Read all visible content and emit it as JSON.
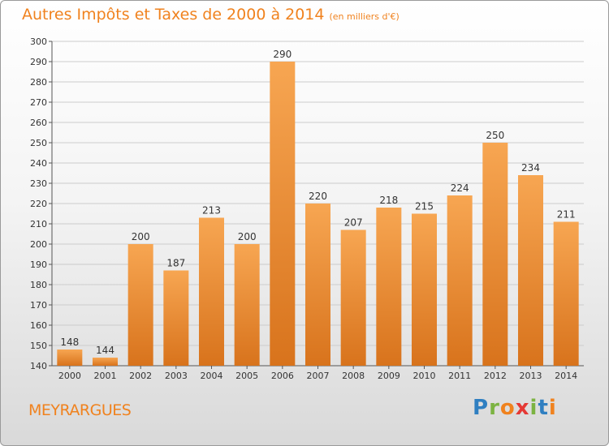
{
  "header": {
    "title": "Autres Impôts et Taxes de 2000 à 2014",
    "subtitle": "(en milliers d'€)"
  },
  "footer": {
    "commune": "MEYRARGUES",
    "logo_text": "Proxiti",
    "logo_colors": [
      "#2f7fc1",
      "#7cb342",
      "#f0821e",
      "#e53935",
      "#7cb342",
      "#2f7fc1",
      "#f0821e"
    ]
  },
  "colors": {
    "bar_light": "#f7a652",
    "bar_dark": "#d8731c",
    "accent": "#f0821e",
    "grid": "#cccccc"
  },
  "chart_data": {
    "type": "bar",
    "title": "Autres Impôts et Taxes de 2000 à 2014",
    "subtitle": "(en milliers d'€)",
    "categories": [
      "2000",
      "2001",
      "2002",
      "2003",
      "2004",
      "2005",
      "2006",
      "2007",
      "2008",
      "2009",
      "2010",
      "2011",
      "2012",
      "2013",
      "2014"
    ],
    "values": [
      148,
      144,
      200,
      187,
      213,
      200,
      290,
      220,
      207,
      218,
      215,
      224,
      250,
      234,
      211
    ],
    "ylim": [
      140,
      300
    ],
    "yticks": [
      140,
      150,
      160,
      170,
      180,
      190,
      200,
      210,
      220,
      230,
      240,
      250,
      260,
      270,
      280,
      290,
      300
    ],
    "grid": true,
    "data_labels": true
  }
}
